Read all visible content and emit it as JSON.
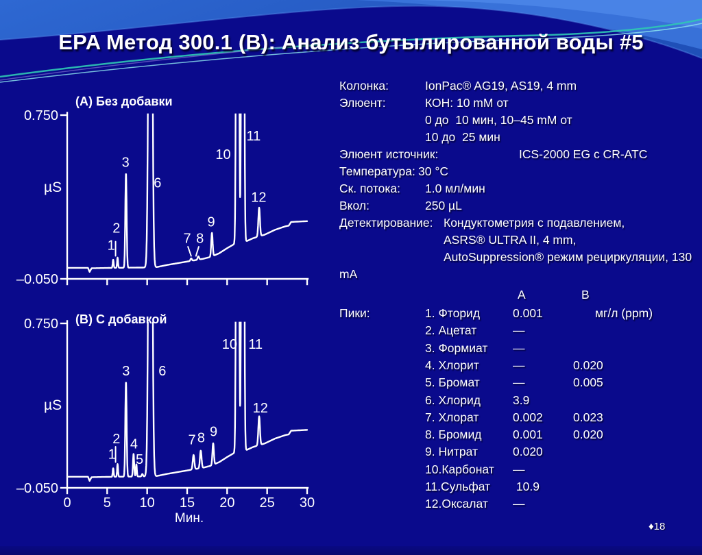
{
  "slide": {
    "title": "EPA Метод 300.1 (B): Анализ бутылированной воды #5",
    "page_marker": "♦18"
  },
  "colors": {
    "body_bg": "#0A0A8C",
    "header_blue": "#2E68D2",
    "header_blue_dark": "#1F50B8",
    "accent_teal": "#2FC8B4",
    "accent_cyan": "#8FE8F0",
    "accent_light_blue": "#4C86E8",
    "text": "#FFFFFF"
  },
  "method": {
    "lines": [
      {
        "label": "Колонка:",
        "value": "IonPac® AG19, AS19, 4 mm",
        "vx": 125
      },
      {
        "label": "Элюент:",
        "value": "КОН: 10 mM от",
        "vx": 125
      },
      {
        "label": "",
        "value": "0 до  10 мин, 10–45 mM от",
        "vx": 125
      },
      {
        "label": "",
        "value": "10 до  25 мин",
        "vx": 125
      },
      {
        "label": "Элюент источник:",
        "value": "ICS-2000 EG с CR-ATC",
        "vx": 262
      },
      {
        "label": "Температура:",
        "value": "30 °C",
        "vx": 115
      },
      {
        "label": "Ск. потока:",
        "value": "1.0 мл/мин",
        "vx": 125
      },
      {
        "label": "Вкол:",
        "value": "250 µL",
        "vx": 125
      },
      {
        "label": "Детектирование:",
        "value": "Кондуктометрия с подавлением,",
        "vx": 152
      },
      {
        "label": "",
        "value": "ASRS® ULTRA II, 4 mm,",
        "vx": 152
      },
      {
        "label": "",
        "value": "AutoSuppression® режим рециркуляции, 130",
        "vx": 152
      },
      {
        "label": "mA",
        "value": "",
        "vx": 125
      }
    ]
  },
  "peaks_table": {
    "section_label": "Пики:",
    "headers": {
      "a": "A",
      "b": "B"
    },
    "rows": [
      {
        "name": "1. Фторид",
        "a": "0.001",
        "b": "",
        "unit": "мг/л (ppm)"
      },
      {
        "name": "2. Ацетат",
        "a": "—",
        "b": "",
        "unit": ""
      },
      {
        "name": "3. Формиат",
        "a": "—",
        "b": "",
        "unit": ""
      },
      {
        "name": "4. Хлорит",
        "a": "—",
        "b": "0.020",
        "unit": ""
      },
      {
        "name": "5. Бромат",
        "a": "—",
        "b": "0.005",
        "unit": ""
      },
      {
        "name": "6. Хлорид",
        "a": "3.9",
        "b": "",
        "unit": ""
      },
      {
        "name": "7. Хлорат",
        "a": "0.002",
        "b": "0.023",
        "unit": ""
      },
      {
        "name": "8. Бромид",
        "a": "0.001",
        "b": "0.020",
        "unit": ""
      },
      {
        "name": "9. Нитрат",
        "a": "0.020",
        "b": "",
        "unit": ""
      },
      {
        "name": "10.Карбонат",
        "a": "—",
        "b": "",
        "unit": ""
      },
      {
        "name": "11.Сульфат",
        "a": " 10.9",
        "b": "",
        "unit": ""
      },
      {
        "name": "12.Оксалат",
        "a": "—",
        "b": "",
        "unit": ""
      }
    ]
  },
  "chart_data": [
    {
      "type": "line",
      "title": "(А) Без добавки",
      "xlabel": "",
      "ylabel": "µS",
      "xlim": [
        0,
        30
      ],
      "ylim": [
        -0.05,
        0.75
      ],
      "xticks": [
        0,
        5,
        10,
        15,
        20,
        25,
        30
      ],
      "xtick_labels_visible": false,
      "yticks": [
        {
          "v": 0.75,
          "label": "0.750"
        },
        {
          "v": -0.05,
          "label": "–0.050"
        }
      ],
      "baseline": [
        [
          0,
          0.004
        ],
        [
          2.6,
          0.004
        ],
        [
          2.8,
          -0.016
        ],
        [
          3.05,
          0.002
        ],
        [
          6,
          0.004
        ],
        [
          11,
          0.006
        ],
        [
          12.5,
          0.018
        ],
        [
          14,
          0.028
        ],
        [
          15.5,
          0.038
        ],
        [
          17,
          0.048
        ],
        [
          18,
          0.058
        ],
        [
          19,
          0.075
        ],
        [
          20,
          0.1
        ],
        [
          20.8,
          0.118
        ],
        [
          21.4,
          0.125
        ],
        [
          22.2,
          0.13
        ],
        [
          23.2,
          0.148
        ],
        [
          24,
          0.158
        ],
        [
          24.7,
          0.166
        ],
        [
          26,
          0.19
        ],
        [
          27.3,
          0.207
        ],
        [
          27.7,
          0.21
        ],
        [
          28.0,
          0.228
        ],
        [
          30,
          0.232
        ]
      ],
      "peaks": [
        {
          "n": 1,
          "t": 5.75,
          "h": 0.04,
          "w": 0.06
        },
        {
          "n": 2,
          "t": 6.3,
          "h": 0.05,
          "w": 0.06
        },
        {
          "n": 3,
          "t": 7.35,
          "h": 0.46,
          "w": 0.085
        },
        {
          "n": 6,
          "t": 10.4,
          "h": 3.5,
          "w": 0.18
        },
        {
          "n": 7,
          "t": 15.5,
          "h": 0.012,
          "w": 0.09
        },
        {
          "n": 8,
          "t": 16.4,
          "h": 0.016,
          "w": 0.09
        },
        {
          "n": 9,
          "t": 18.1,
          "h": 0.115,
          "w": 0.09
        },
        {
          "n": 10,
          "t": 21.3,
          "h": 6,
          "w": 0.115
        },
        {
          "n": 11,
          "t": 21.95,
          "h": 6,
          "w": 0.115
        },
        {
          "n": 12,
          "t": 24.0,
          "h": 0.14,
          "w": 0.1
        }
      ],
      "peak_labels": [
        {
          "text": "1",
          "t": 5.5,
          "v": 0.115
        },
        {
          "text": "2",
          "t": 6.15,
          "v": 0.2
        },
        {
          "text": "3",
          "t": 7.3,
          "v": 0.52
        },
        {
          "text": "6",
          "t": 11.3,
          "v": 0.42
        },
        {
          "text": "7",
          "t": 15.0,
          "v": 0.15
        },
        {
          "text": "8",
          "t": 16.6,
          "v": 0.15
        },
        {
          "text": "9",
          "t": 18.0,
          "v": 0.23
        },
        {
          "text": "10",
          "t": 19.5,
          "v": 0.56
        },
        {
          "text": "11",
          "t": 23.3,
          "v": 0.65
        },
        {
          "text": "12",
          "t": 23.95,
          "v": 0.35
        }
      ],
      "pointer_lines": [
        [
          [
            6.05,
            0.062
          ],
          [
            6.05,
            0.132
          ]
        ],
        [
          [
            15.1,
            0.107
          ],
          [
            15.5,
            0.062
          ]
        ],
        [
          [
            16.45,
            0.107
          ],
          [
            16.1,
            0.062
          ]
        ]
      ]
    },
    {
      "type": "line",
      "title": "(В) С добавкой",
      "xlabel": "Мин.",
      "ylabel": "µS",
      "xlim": [
        0,
        30
      ],
      "ylim": [
        -0.05,
        0.75
      ],
      "xticks": [
        0,
        5,
        10,
        15,
        20,
        25,
        30
      ],
      "xtick_labels_visible": true,
      "yticks": [
        {
          "v": 0.75,
          "label": "0.750"
        },
        {
          "v": -0.05,
          "label": "–0.050"
        }
      ],
      "baseline": [
        [
          0,
          0.004
        ],
        [
          2.6,
          0.004
        ],
        [
          2.8,
          -0.016
        ],
        [
          3.05,
          0.002
        ],
        [
          6,
          0.004
        ],
        [
          11,
          0.006
        ],
        [
          12.5,
          0.018
        ],
        [
          14,
          0.028
        ],
        [
          15.5,
          0.038
        ],
        [
          17,
          0.048
        ],
        [
          18,
          0.058
        ],
        [
          19,
          0.075
        ],
        [
          20,
          0.1
        ],
        [
          20.8,
          0.118
        ],
        [
          21.4,
          0.125
        ],
        [
          22.2,
          0.13
        ],
        [
          23.2,
          0.148
        ],
        [
          24,
          0.158
        ],
        [
          24.7,
          0.166
        ],
        [
          26,
          0.19
        ],
        [
          27.3,
          0.207
        ],
        [
          27.7,
          0.21
        ],
        [
          28.0,
          0.228
        ],
        [
          30,
          0.232
        ]
      ],
      "peaks": [
        {
          "n": 1,
          "t": 5.75,
          "h": 0.042,
          "w": 0.06
        },
        {
          "n": 2,
          "t": 6.3,
          "h": 0.062,
          "w": 0.06
        },
        {
          "n": 3,
          "t": 7.35,
          "h": 0.46,
          "w": 0.085
        },
        {
          "n": 4,
          "t": 8.3,
          "h": 0.11,
          "w": 0.075
        },
        {
          "n": 5,
          "t": 8.65,
          "h": 0.06,
          "w": 0.06
        },
        {
          "n": 0,
          "t": 9.4,
          "h": 0.012,
          "w": 0.08
        },
        {
          "n": 6,
          "t": 10.4,
          "h": 3.5,
          "w": 0.18
        },
        {
          "n": 7,
          "t": 15.8,
          "h": 0.07,
          "w": 0.1
        },
        {
          "n": 8,
          "t": 16.7,
          "h": 0.085,
          "w": 0.1
        },
        {
          "n": 9,
          "t": 18.25,
          "h": 0.105,
          "w": 0.09
        },
        {
          "n": 10,
          "t": 21.3,
          "h": 6,
          "w": 0.115
        },
        {
          "n": 11,
          "t": 21.95,
          "h": 6,
          "w": 0.115
        },
        {
          "n": 12,
          "t": 24.0,
          "h": 0.14,
          "w": 0.1
        }
      ],
      "peak_labels": [
        {
          "text": "1",
          "t": 5.6,
          "v": 0.115
        },
        {
          "text": "2",
          "t": 6.15,
          "v": 0.19
        },
        {
          "text": "3",
          "t": 7.35,
          "v": 0.52
        },
        {
          "text": "4",
          "t": 8.35,
          "v": 0.165
        },
        {
          "text": "5",
          "t": 9.05,
          "v": 0.09
        },
        {
          "text": "6",
          "t": 11.9,
          "v": 0.52
        },
        {
          "text": "7",
          "t": 15.6,
          "v": 0.185
        },
        {
          "text": "8",
          "t": 16.75,
          "v": 0.195
        },
        {
          "text": "9",
          "t": 18.3,
          "v": 0.225
        },
        {
          "text": "10",
          "t": 20.3,
          "v": 0.65
        },
        {
          "text": "11",
          "t": 23.55,
          "v": 0.65
        },
        {
          "text": "12",
          "t": 24.15,
          "v": 0.34
        }
      ],
      "pointer_lines": [
        [
          [
            6.05,
            0.075
          ],
          [
            6.05,
            0.15
          ]
        ]
      ]
    }
  ]
}
